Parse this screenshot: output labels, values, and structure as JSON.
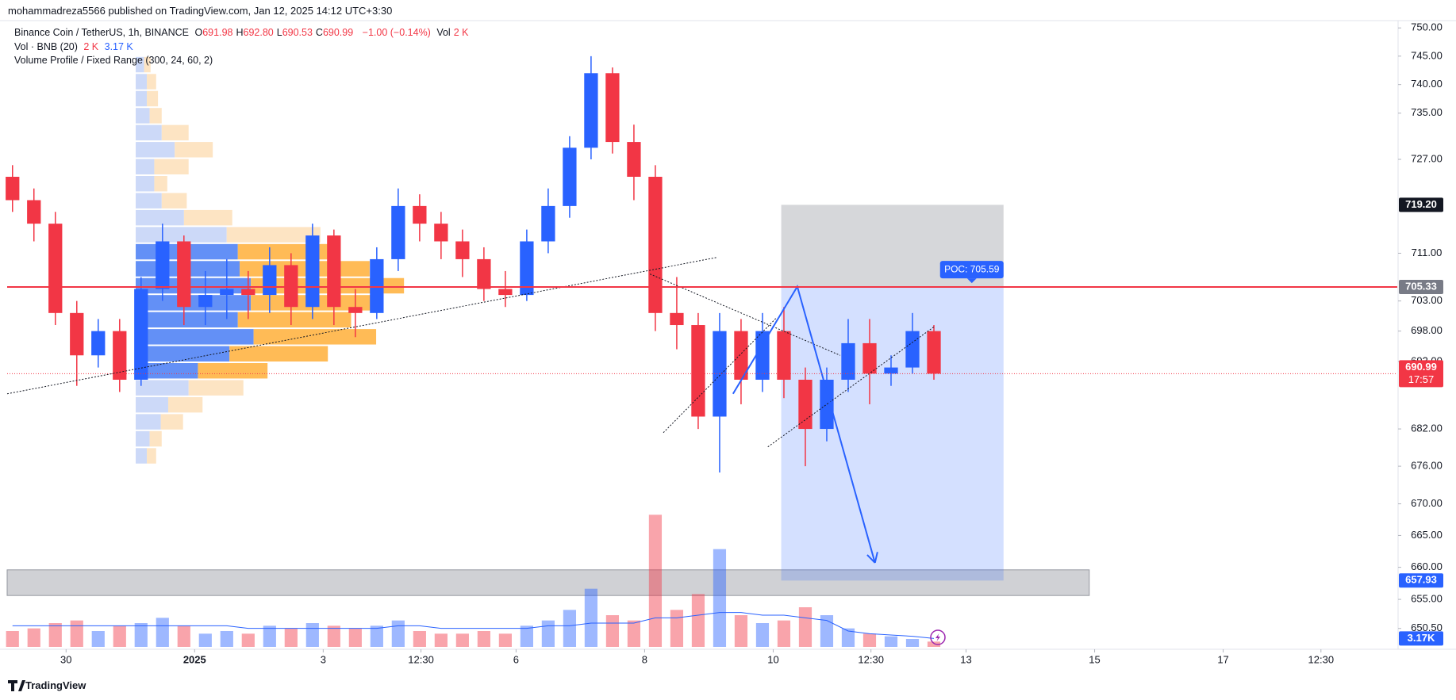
{
  "header": {
    "published": "mohammadreza5566 published on TradingView.com, Jan 12, 2025 14:12 UTC+3:30",
    "footer": "TradingView"
  },
  "chart_data": {
    "type": "candlestick",
    "title": "Binance Coin / TetherUS, 1h, BINANCE",
    "ohlc_legend": [
      {
        "key": "O",
        "value": "691.98"
      },
      {
        "key": "H",
        "value": "692.80"
      },
      {
        "key": "L",
        "value": "690.53"
      },
      {
        "key": "C",
        "value": "690.99"
      }
    ],
    "change": "−1.00 (−0.14%)",
    "vol_key": "Vol",
    "vol_value": "2 K",
    "indicator_volume": {
      "name": "Vol · BNB (20)",
      "value": "2 K",
      "ma": "3.17 K"
    },
    "indicator_profile": "Volume Profile / Fixed Range (300, 24, 60, 2)",
    "x": [
      "2024-12-29 04:00",
      "2024-12-29 12:00",
      "2024-12-29 20:00",
      "2024-12-30 04:00",
      "2024-12-30 12:00",
      "2024-12-30 20:00",
      "2024-12-31 04:00",
      "2024-12-31 12:00",
      "2024-12-31 20:00",
      "2025-01-01 04:00",
      "2025-01-01 12:00",
      "2025-01-01 20:00",
      "2025-01-02 04:00",
      "2025-01-02 12:00",
      "2025-01-02 20:00",
      "2025-01-03 04:00",
      "2025-01-03 12:00",
      "2025-01-03 20:00",
      "2025-01-04 04:00",
      "2025-01-04 12:00",
      "2025-01-04 20:00",
      "2025-01-05 04:00",
      "2025-01-05 12:00",
      "2025-01-05 20:00",
      "2025-01-06 04:00",
      "2025-01-06 12:00",
      "2025-01-06 20:00",
      "2025-01-07 04:00",
      "2025-01-07 12:00",
      "2025-01-07 20:00",
      "2025-01-08 04:00",
      "2025-01-08 12:00",
      "2025-01-08 20:00",
      "2025-01-09 04:00",
      "2025-01-09 12:00",
      "2025-01-09 20:00",
      "2025-01-10 04:00",
      "2025-01-10 12:00",
      "2025-01-10 20:00",
      "2025-01-11 04:00",
      "2025-01-11 12:00",
      "2025-01-11 20:00",
      "2025-01-12 04:00",
      "2025-01-12 12:00"
    ],
    "open": [
      724,
      720,
      716,
      701,
      694,
      698,
      690,
      705,
      713,
      702,
      704,
      705,
      704,
      709,
      702,
      714,
      702,
      701,
      710,
      719,
      716,
      713,
      710,
      705,
      704,
      713,
      719,
      729,
      742,
      730,
      724,
      701,
      699,
      684,
      698,
      690,
      698,
      690,
      682,
      690,
      696,
      691,
      692,
      698
    ],
    "high": [
      726,
      722,
      718,
      703,
      700,
      700,
      707,
      716,
      714,
      708,
      710,
      708,
      712,
      711,
      716,
      715,
      705,
      712,
      722,
      721,
      718,
      715,
      712,
      708,
      715,
      722,
      731,
      745,
      743,
      733,
      726,
      707,
      701,
      701,
      700,
      701,
      702,
      692,
      692,
      700,
      700,
      694,
      701,
      699
    ],
    "low": [
      718,
      713,
      699,
      689,
      692,
      688,
      689,
      703,
      699,
      699,
      700,
      700,
      701,
      699,
      700,
      699,
      697,
      700,
      708,
      713,
      710,
      707,
      703,
      702,
      703,
      711,
      717,
      727,
      728,
      720,
      698,
      695,
      682,
      675,
      686,
      688,
      687,
      676,
      680,
      688,
      686,
      689,
      691,
      690
    ],
    "close": [
      720,
      716,
      701,
      694,
      698,
      690,
      705,
      713,
      702,
      704,
      705,
      704,
      709,
      702,
      714,
      702,
      701,
      710,
      719,
      716,
      713,
      710,
      705,
      704,
      713,
      719,
      729,
      742,
      730,
      724,
      701,
      699,
      684,
      698,
      690,
      698,
      690,
      682,
      690,
      696,
      691,
      692,
      698,
      690.99
    ],
    "countdown": "17:57",
    "up_color": "#2962ff",
    "down_color": "#f23645",
    "log_scale": true,
    "grid": false,
    "ylim": [
      647.3,
      751.3
    ],
    "yticks": [
      {
        "value": 750,
        "label": "750.00"
      },
      {
        "value": 745,
        "label": "745.00"
      },
      {
        "value": 740,
        "label": "740.00"
      },
      {
        "value": 735,
        "label": "735.00"
      },
      {
        "value": 727,
        "label": "727.00"
      },
      {
        "value": 711,
        "label": "711.00"
      },
      {
        "value": 703,
        "label": "703.00"
      },
      {
        "value": 698,
        "label": "698.00"
      },
      {
        "value": 693,
        "label": "693.00"
      },
      {
        "value": 682,
        "label": "682.00"
      },
      {
        "value": 676,
        "label": "676.00"
      },
      {
        "value": 670,
        "label": "670.00"
      },
      {
        "value": 665,
        "label": "665.00"
      },
      {
        "value": 660,
        "label": "660.00"
      },
      {
        "value": 655,
        "label": "655.00"
      },
      {
        "value": 650.5,
        "label": "650.50"
      }
    ],
    "xlim": [
      "2024-12-29 02:00",
      "2025-01-19 17:00"
    ],
    "xticks": [
      {
        "value": "2024-12-30 00:00",
        "label": "30"
      },
      {
        "value": "2025-01-01 00:00",
        "label": "2025"
      },
      {
        "value": "2025-01-03 00:00",
        "label": "3"
      },
      {
        "value": "2025-01-04 12:30",
        "label": "12:30"
      },
      {
        "value": "2025-01-06 00:00",
        "label": "6"
      },
      {
        "value": "2025-01-08 00:00",
        "label": "8"
      },
      {
        "value": "2025-01-10 00:00",
        "label": "10"
      },
      {
        "value": "2025-01-11 12:30",
        "label": "12:30"
      },
      {
        "value": "2025-01-13 00:00",
        "label": "13"
      },
      {
        "value": "2025-01-15 00:00",
        "label": "15"
      },
      {
        "value": "2025-01-17 00:00",
        "label": "17"
      },
      {
        "value": "2025-01-18 12:30",
        "label": "12:30"
      }
    ],
    "volume": {
      "values": [
        6,
        7,
        9,
        10,
        6,
        8,
        9,
        11,
        8,
        5,
        6,
        5,
        8,
        7,
        9,
        8,
        7,
        8,
        10,
        6,
        5,
        5,
        6,
        5,
        8,
        10,
        14,
        22,
        12,
        10,
        50,
        14,
        20,
        37,
        12,
        9,
        10,
        15,
        12,
        7,
        5,
        4,
        3,
        2
      ],
      "ylim": [
        0,
        60
      ],
      "ma": {
        "values": [
          8,
          8,
          8,
          8,
          8,
          8,
          8,
          8,
          8,
          8,
          8,
          7,
          7,
          7,
          7,
          7,
          7,
          7,
          8,
          8,
          7,
          7,
          7,
          7,
          7,
          8,
          8,
          9,
          9,
          9,
          11,
          11,
          12,
          13,
          13,
          12,
          12,
          11,
          10,
          6,
          5,
          4.5,
          4,
          3.17
        ],
        "color": "#2962ff",
        "last_label": "3.17K"
      }
    },
    "volume_profile": {
      "start": "2024-12-31 02:00",
      "price_range": [
        676.3,
        745
      ],
      "xlim": [
        0,
        300
      ],
      "value_area": [
        691.3,
        713.5
      ],
      "up": [
        9,
        12,
        12,
        15,
        28,
        42,
        20,
        20,
        28,
        52,
        98,
        110,
        112,
        124,
        124,
        110,
        127,
        101,
        67,
        57,
        35,
        27,
        15,
        12
      ],
      "down": [
        7,
        10,
        12,
        13,
        29,
        41,
        37,
        14,
        27,
        52,
        101,
        109,
        140,
        165,
        135,
        122,
        132,
        106,
        75,
        59,
        37,
        24,
        13,
        10
      ]
    },
    "position": {
      "start": "2025-01-10 03:00",
      "end": "2025-01-13 14:00",
      "entry": 705.33,
      "stop": {
        "value": 719.2,
        "label": "719.20"
      },
      "target": 657.93
    },
    "poc": {
      "value": 705.59,
      "label": "POC: 705.59"
    },
    "hline": {
      "value": 705.33,
      "color": "#f23645"
    },
    "zone": {
      "start": "2024-12-29 02:00",
      "end": "2025-01-14 22:00",
      "top": 659.6,
      "bottom": 655.6
    },
    "trendlines": [
      {
        "points": [
          [
            "2024-12-29 02:00",
            687.7
          ],
          [
            "2025-01-09 03:00",
            710.3
          ]
        ]
      },
      {
        "points": [
          [
            "2025-01-08 02:00",
            707.5
          ],
          [
            "2025-01-11 01:00",
            694.0
          ]
        ]
      },
      {
        "points": [
          [
            "2025-01-08 07:00",
            681.4
          ],
          [
            "2025-01-10 01:00",
            700.1
          ]
        ]
      },
      {
        "points": [
          [
            "2025-01-09 22:00",
            679.1
          ],
          [
            "2025-01-12 12:00",
            698.7
          ]
        ]
      }
    ],
    "arrow": {
      "color": "#2962ff",
      "points": [
        [
          "2025-01-09 09:00",
          687.7
        ],
        [
          "2025-01-10 09:00",
          705.4
        ],
        [
          "2025-01-11 14:00",
          660.7
        ]
      ]
    }
  }
}
